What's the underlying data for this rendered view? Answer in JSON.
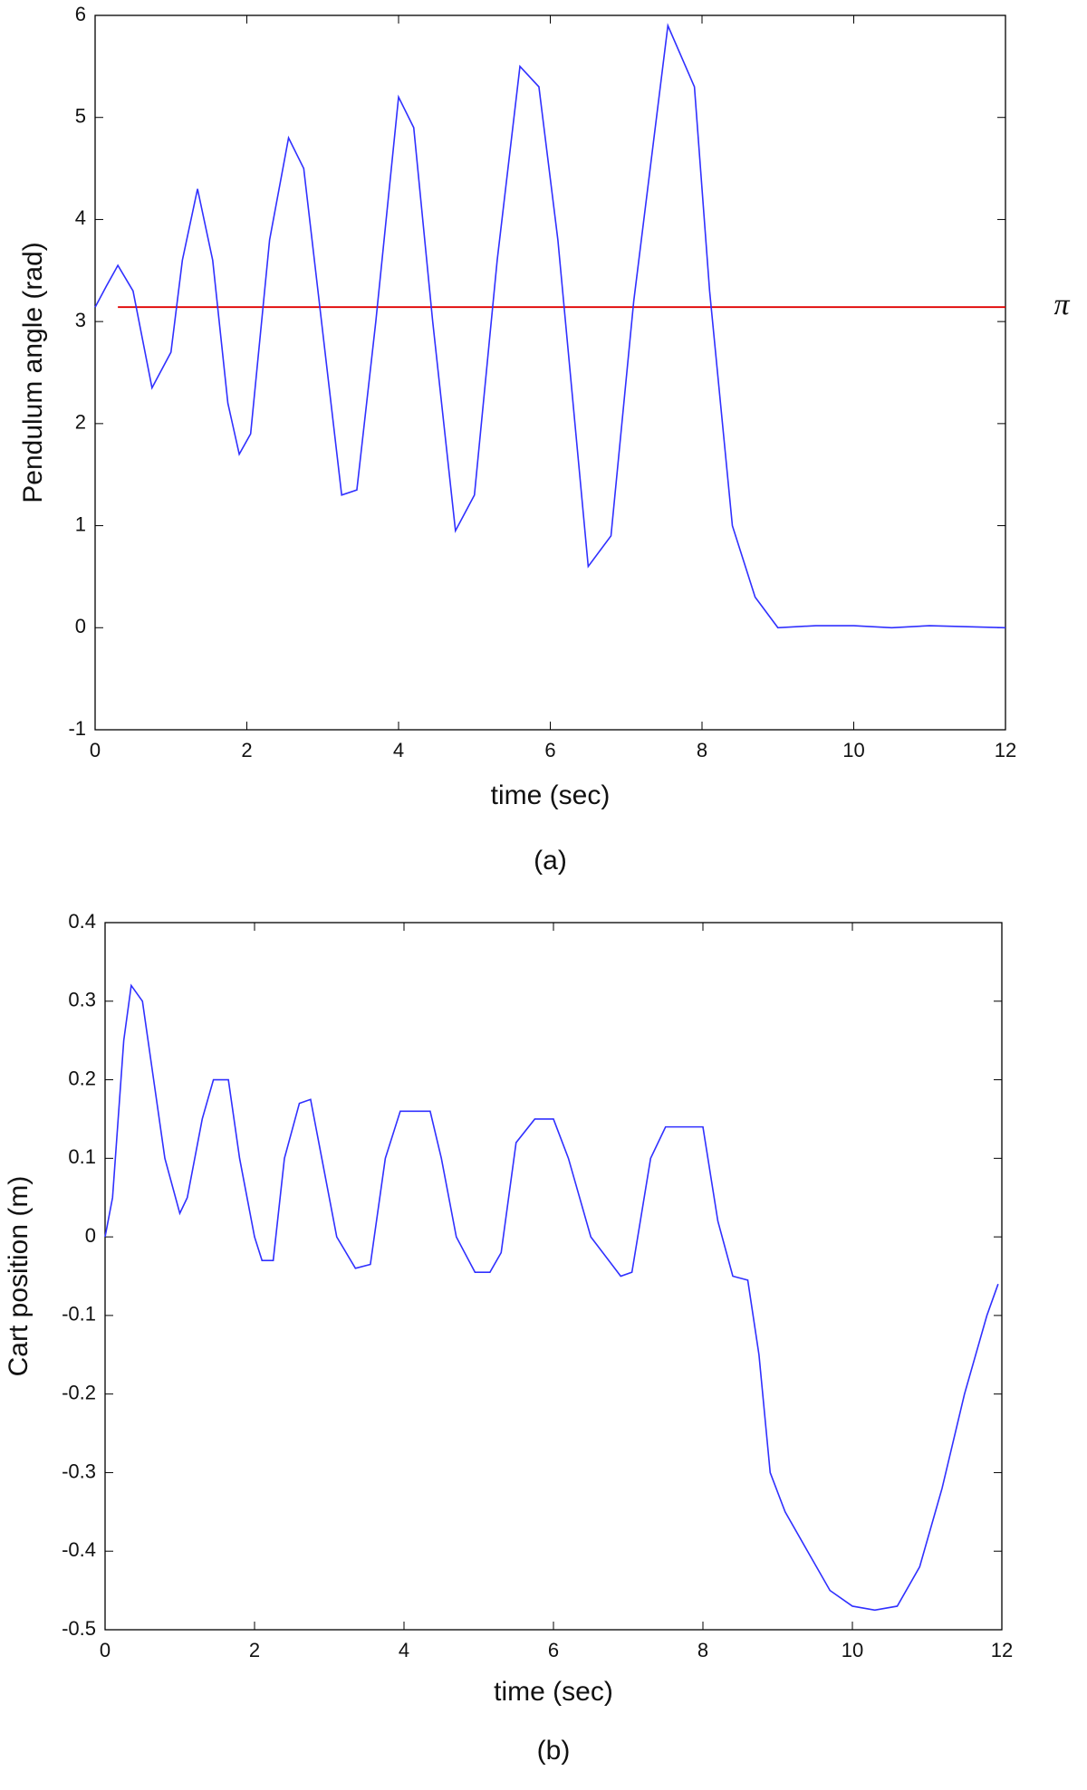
{
  "chart_data": [
    {
      "type": "line",
      "y_label": "Pendulum angle (rad)",
      "x_label": "time (sec)",
      "caption": "(a)",
      "xlim": [
        0,
        12
      ],
      "xticks": [
        0,
        2,
        4,
        6,
        8,
        10,
        12
      ],
      "ylim": [
        -1,
        6
      ],
      "yticks": [
        -1,
        0,
        1,
        2,
        3,
        4,
        5,
        6
      ],
      "grid": false,
      "x": [
        0,
        0.15,
        0.3,
        0.5,
        0.75,
        1.0,
        1.15,
        1.35,
        1.55,
        1.75,
        1.9,
        2.05,
        2.3,
        2.55,
        2.75,
        3.0,
        3.25,
        3.45,
        3.7,
        4.0,
        4.2,
        4.45,
        4.75,
        5.0,
        5.3,
        5.6,
        5.85,
        6.1,
        6.5,
        6.8,
        7.1,
        7.55,
        7.9,
        8.1,
        8.4,
        8.7,
        9.0,
        9.5,
        10,
        10.5,
        11,
        12
      ],
      "series": [
        {
          "color": "#3030ff",
          "values": [
            3.14,
            3.35,
            3.55,
            3.3,
            2.35,
            2.7,
            3.6,
            4.3,
            3.6,
            2.2,
            1.7,
            1.9,
            3.8,
            4.8,
            4.5,
            2.9,
            1.3,
            1.35,
            3.0,
            5.2,
            4.9,
            3.0,
            0.95,
            1.3,
            3.6,
            5.5,
            5.3,
            3.8,
            0.6,
            0.9,
            3.2,
            5.9,
            5.3,
            3.3,
            1.0,
            0.3,
            0.0,
            0.02,
            0.02,
            0.0,
            0.02,
            0.0
          ]
        }
      ],
      "reference_line": {
        "label": "π",
        "value": 3.1416,
        "x": [
          0.3,
          12
        ],
        "color": "#e00000"
      }
    },
    {
      "type": "line",
      "y_label": "Cart position (m)",
      "x_label": "time (sec)",
      "caption": "(b)",
      "xlim": [
        0,
        12
      ],
      "xticks": [
        0,
        2,
        4,
        6,
        8,
        10,
        12
      ],
      "ylim": [
        -0.5,
        0.4
      ],
      "yticks": [
        -0.5,
        -0.4,
        -0.3,
        -0.2,
        -0.1,
        0,
        0.1,
        0.2,
        0.3,
        0.4
      ],
      "grid": false,
      "x": [
        0,
        0.1,
        0.25,
        0.35,
        0.5,
        0.65,
        0.8,
        1.0,
        1.1,
        1.3,
        1.45,
        1.65,
        1.8,
        2.0,
        2.1,
        2.25,
        2.4,
        2.6,
        2.75,
        2.9,
        3.1,
        3.35,
        3.55,
        3.75,
        3.95,
        4.15,
        4.35,
        4.5,
        4.7,
        4.95,
        5.15,
        5.3,
        5.5,
        5.75,
        6.0,
        6.2,
        6.5,
        6.9,
        7.05,
        7.3,
        7.5,
        7.8,
        8.0,
        8.2,
        8.4,
        8.6,
        8.75,
        8.9,
        9.1,
        9.4,
        9.7,
        10.0,
        10.3,
        10.6,
        10.9,
        11.2,
        11.5,
        11.8,
        11.95
      ],
      "series": [
        {
          "color": "#3030ff",
          "values": [
            0,
            0.05,
            0.25,
            0.32,
            0.3,
            0.2,
            0.1,
            0.03,
            0.05,
            0.15,
            0.2,
            0.2,
            0.1,
            0,
            -0.03,
            -0.03,
            0.1,
            0.17,
            0.175,
            0.1,
            0,
            -0.04,
            -0.035,
            0.1,
            0.16,
            0.16,
            0.16,
            0.1,
            0,
            -0.045,
            -0.045,
            -0.02,
            0.12,
            0.15,
            0.15,
            0.1,
            0,
            -0.05,
            -0.045,
            0.1,
            0.14,
            0.14,
            0.14,
            0.02,
            -0.05,
            -0.055,
            -0.15,
            -0.3,
            -0.35,
            -0.4,
            -0.45,
            -0.47,
            -0.475,
            -0.47,
            -0.42,
            -0.32,
            -0.2,
            -0.1,
            -0.06
          ]
        }
      ]
    }
  ]
}
